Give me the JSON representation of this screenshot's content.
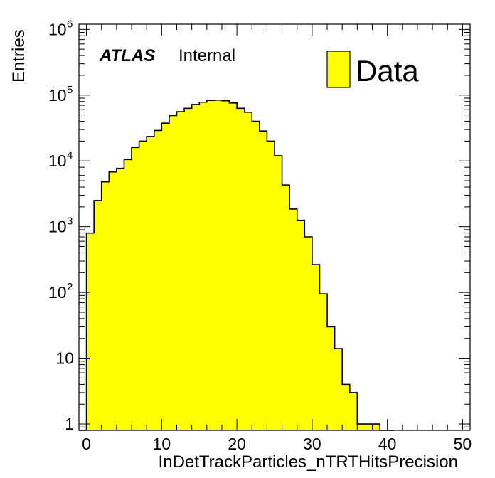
{
  "chart_data": {
    "type": "bar",
    "xlabel": "InDetTrackParticles_nTRTHitsPrecision",
    "ylabel": "Entries",
    "xlim": [
      -1,
      51
    ],
    "ylim": [
      0.8,
      1200000
    ],
    "yscale": "log",
    "bin_width": 1,
    "x": [
      -1,
      0,
      1,
      2,
      3,
      4,
      5,
      6,
      7,
      8,
      9,
      10,
      11,
      12,
      13,
      14,
      15,
      16,
      17,
      18,
      19,
      20,
      21,
      22,
      23,
      24,
      25,
      26,
      27,
      28,
      29,
      30,
      31,
      32,
      33,
      34,
      35,
      36,
      37,
      38,
      39,
      40
    ],
    "values": [
      0,
      800,
      2500,
      4800,
      6800,
      7700,
      10500,
      16000,
      20000,
      23500,
      29000,
      37500,
      49000,
      56000,
      63000,
      72000,
      78000,
      83000,
      84000,
      82000,
      76000,
      63000,
      55000,
      40000,
      28500,
      20000,
      12000,
      4300,
      1850,
      1250,
      700,
      265,
      95,
      30,
      14,
      4,
      3,
      1,
      1,
      1,
      0,
      0
    ],
    "x_ticks": [
      "0",
      "10",
      "20",
      "30",
      "40",
      "50"
    ],
    "y_ticks": [
      {
        "value": 1,
        "base": "1",
        "exp": ""
      },
      {
        "value": 10,
        "base": "10",
        "exp": ""
      },
      {
        "value": 100,
        "base": "10",
        "exp": "2"
      },
      {
        "value": 1000,
        "base": "10",
        "exp": "3"
      },
      {
        "value": 10000,
        "base": "10",
        "exp": "4"
      },
      {
        "value": 100000,
        "base": "10",
        "exp": "5"
      },
      {
        "value": 1000000,
        "base": "10",
        "exp": "6"
      }
    ],
    "legend": [
      {
        "name": "Data",
        "color": "#ffff00"
      }
    ],
    "legend_position": "top-right",
    "atlas_label": "ATLAS",
    "atlas_status": "Internal",
    "fill_color": "#ffff00",
    "line_color": "#000000",
    "grid": false
  }
}
